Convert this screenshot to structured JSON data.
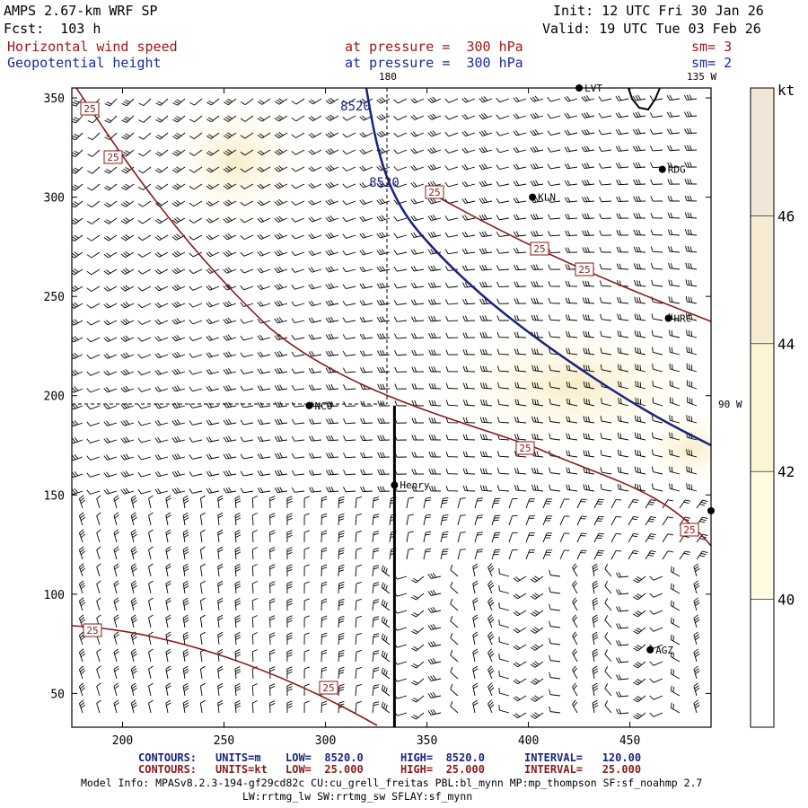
{
  "header": {
    "model": "AMPS 2.67-km WRF SP",
    "forecast": "Fcst:  103 h",
    "init": "Init: 12 UTC Fri 30 Jan 26",
    "valid": "Valid: 19 UTC Tue 03 Feb 26",
    "field1": {
      "name": "Horizontal wind speed",
      "level": "at pressure =  300 hPa",
      "smooth": "sm= 3"
    },
    "field2": {
      "name": "Geopotential height",
      "level": "at pressure =  300 hPa",
      "smooth": "sm= 2"
    }
  },
  "map": {
    "x_ticks": [
      "200",
      "250",
      "300",
      "350",
      "400",
      "450"
    ],
    "y_ticks": [
      "350",
      "300",
      "250",
      "200",
      "150",
      "100",
      "50"
    ],
    "lon_labels": {
      "top1": "180",
      "top2": "135 W",
      "right": "90 W"
    },
    "stations": [
      {
        "name": "LVT",
        "x": 425,
        "y": 355
      },
      {
        "name": "RDG",
        "x": 466,
        "y": 314
      },
      {
        "name": "KLN",
        "x": 402,
        "y": 300
      },
      {
        "name": "HRC",
        "x": 469,
        "y": 239
      },
      {
        "name": "NCO",
        "x": 292,
        "y": 195
      },
      {
        "name": "Henry",
        "x": 334,
        "y": 155
      },
      {
        "name": "AGZ",
        "x": 460,
        "y": 72
      },
      {
        "name": "",
        "x": 490,
        "y": 142
      }
    ],
    "cross_section": {
      "x": 334,
      "y_from": 195,
      "y_to": 33
    },
    "x_range": [
      175,
      490
    ],
    "y_range": [
      33,
      355
    ],
    "height_contour_label": "8520",
    "wind_contour_label": "25"
  },
  "colorbar": {
    "unit": "kt",
    "ticks": [
      "46",
      "44",
      "42",
      "40"
    ],
    "colors": [
      "#ffffff",
      "#fffce2",
      "#fcf5d3",
      "#f7ecd3",
      "#f2e6d8"
    ]
  },
  "footer": {
    "row1": {
      "label": "CONTOURS:",
      "units": "UNITS=m",
      "low": "LOW=  8520.0",
      "high": "HIGH=  8520.0",
      "interval": "INTERVAL=   120.00"
    },
    "row2": {
      "label": "CONTOURS:",
      "units": "UNITS=kt",
      "low": "LOW=  25.000",
      "high": "HIGH=  25.000",
      "interval": "INTERVAL=   25.000"
    },
    "model_info": "Model Info: MPASv8.2.3-194-gf29cd82c CU:cu_grell_freitas PBL:bl_mynn MP:mp_thompson SF:sf_noahmp 2.7",
    "model_info2": "LW:rrtmg_lw SW:rrtmg_sw SFLAY:sf_mynn"
  },
  "colors": {
    "wind_contour": "#8b1a1a",
    "height_contour": "#1a237e",
    "cross_section": "#000000"
  }
}
